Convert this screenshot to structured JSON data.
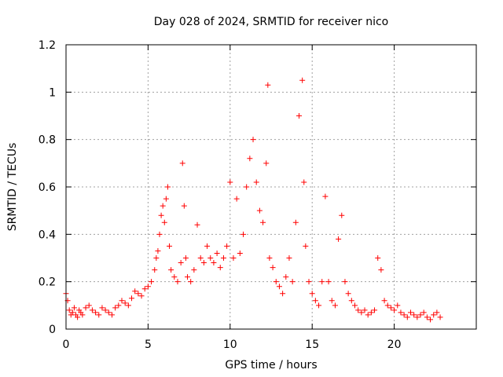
{
  "chart_data": {
    "type": "scatter",
    "title": "Day 028 of 2024, SRMTID for receiver nico",
    "xlabel": "GPS time / hours",
    "ylabel": "SRMTID / TECUs",
    "xlim": [
      0,
      25
    ],
    "ylim": [
      0,
      1.2
    ],
    "x_ticks": [
      0,
      5,
      10,
      15,
      20
    ],
    "x_tick_labels": [
      "0",
      "5",
      "10",
      "15",
      "20"
    ],
    "y_ticks": [
      0,
      0.2,
      0.4,
      0.6,
      0.8,
      1.0,
      1.2
    ],
    "y_tick_labels": [
      "0",
      "0.2",
      "0.4",
      "0.6",
      "0.8",
      "1",
      "1.2"
    ],
    "grid": true,
    "marker": "plus",
    "marker_color": "#ff0000",
    "series": [
      {
        "name": "SRMTID",
        "x": [
          0.0,
          0.1,
          0.2,
          0.3,
          0.4,
          0.5,
          0.6,
          0.7,
          0.8,
          0.9,
          1.0,
          1.2,
          1.4,
          1.6,
          1.8,
          2.0,
          2.2,
          2.4,
          2.6,
          2.8,
          3.0,
          3.2,
          3.4,
          3.6,
          3.8,
          4.0,
          4.2,
          4.4,
          4.6,
          4.8,
          5.0,
          5.2,
          5.4,
          5.5,
          5.6,
          5.7,
          5.8,
          5.9,
          6.0,
          6.1,
          6.2,
          6.3,
          6.4,
          6.6,
          6.8,
          7.0,
          7.1,
          7.2,
          7.3,
          7.4,
          7.6,
          7.8,
          8.0,
          8.2,
          8.4,
          8.6,
          8.8,
          9.0,
          9.2,
          9.4,
          9.6,
          9.8,
          10.0,
          10.2,
          10.4,
          10.6,
          10.8,
          11.0,
          11.2,
          11.4,
          11.6,
          11.8,
          12.0,
          12.2,
          12.3,
          12.4,
          12.6,
          12.8,
          13.0,
          13.2,
          13.4,
          13.6,
          13.8,
          14.0,
          14.2,
          14.4,
          14.5,
          14.6,
          14.8,
          15.0,
          15.2,
          15.4,
          15.6,
          15.8,
          16.0,
          16.2,
          16.4,
          16.6,
          16.8,
          17.0,
          17.2,
          17.4,
          17.6,
          17.8,
          18.0,
          18.2,
          18.4,
          18.6,
          18.8,
          19.0,
          19.2,
          19.4,
          19.6,
          19.8,
          20.0,
          20.2,
          20.4,
          20.6,
          20.8,
          21.0,
          21.2,
          21.4,
          21.6,
          21.8,
          22.0,
          22.2,
          22.4,
          22.6,
          22.8
        ],
        "y": [
          0.15,
          0.12,
          0.08,
          0.06,
          0.07,
          0.09,
          0.06,
          0.05,
          0.08,
          0.07,
          0.06,
          0.09,
          0.1,
          0.08,
          0.07,
          0.06,
          0.09,
          0.08,
          0.07,
          0.06,
          0.09,
          0.1,
          0.12,
          0.11,
          0.1,
          0.13,
          0.16,
          0.15,
          0.14,
          0.17,
          0.18,
          0.2,
          0.25,
          0.3,
          0.33,
          0.4,
          0.48,
          0.52,
          0.45,
          0.55,
          0.6,
          0.35,
          0.25,
          0.22,
          0.2,
          0.28,
          0.7,
          0.52,
          0.3,
          0.22,
          0.2,
          0.25,
          0.44,
          0.3,
          0.28,
          0.35,
          0.3,
          0.28,
          0.32,
          0.26,
          0.3,
          0.35,
          0.62,
          0.3,
          0.55,
          0.32,
          0.4,
          0.6,
          0.72,
          0.8,
          0.62,
          0.5,
          0.45,
          0.7,
          1.03,
          0.3,
          0.26,
          0.2,
          0.18,
          0.15,
          0.22,
          0.3,
          0.2,
          0.45,
          0.9,
          1.05,
          0.62,
          0.35,
          0.2,
          0.15,
          0.12,
          0.1,
          0.2,
          0.56,
          0.2,
          0.12,
          0.1,
          0.38,
          0.48,
          0.2,
          0.15,
          0.12,
          0.1,
          0.08,
          0.07,
          0.08,
          0.06,
          0.07,
          0.08,
          0.3,
          0.25,
          0.12,
          0.1,
          0.09,
          0.08,
          0.1,
          0.07,
          0.06,
          0.05,
          0.07,
          0.06,
          0.05,
          0.06,
          0.07,
          0.05,
          0.04,
          0.06,
          0.07,
          0.05
        ]
      }
    ]
  }
}
